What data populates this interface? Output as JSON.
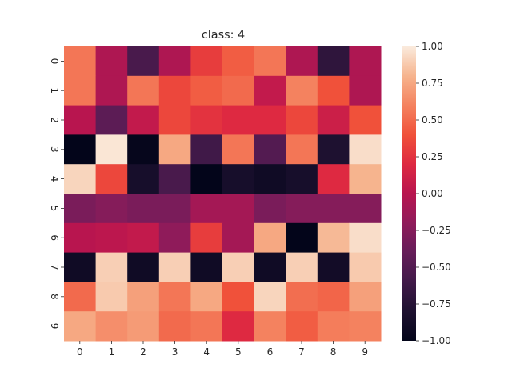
{
  "chart_data": {
    "type": "heatmap",
    "title": "class: 4",
    "xlabel": "",
    "ylabel": "",
    "x_categories": [
      "0",
      "1",
      "2",
      "3",
      "4",
      "5",
      "6",
      "7",
      "8",
      "9"
    ],
    "y_categories": [
      "0",
      "1",
      "2",
      "3",
      "4",
      "5",
      "6",
      "7",
      "8",
      "9"
    ],
    "values": [
      [
        0.55,
        -0.05,
        -0.55,
        -0.05,
        0.3,
        0.45,
        0.55,
        -0.05,
        -0.7,
        -0.05
      ],
      [
        0.55,
        -0.05,
        0.55,
        0.35,
        0.45,
        0.5,
        0.05,
        0.6,
        0.4,
        -0.05
      ],
      [
        0.0,
        -0.45,
        0.05,
        0.35,
        0.25,
        0.2,
        0.2,
        0.35,
        0.1,
        0.4
      ],
      [
        -1.0,
        0.98,
        -0.98,
        0.75,
        -0.6,
        0.55,
        -0.5,
        0.55,
        -0.8,
        0.95
      ],
      [
        0.92,
        0.35,
        -0.85,
        -0.55,
        -1.0,
        -0.85,
        -0.9,
        -0.85,
        0.2,
        0.8
      ],
      [
        -0.3,
        -0.25,
        -0.3,
        -0.3,
        -0.1,
        -0.1,
        -0.3,
        -0.25,
        -0.25,
        -0.25
      ],
      [
        0.0,
        0.02,
        0.05,
        -0.2,
        0.3,
        -0.1,
        0.75,
        -1.0,
        0.82,
        0.95
      ],
      [
        -0.9,
        0.9,
        -0.9,
        0.9,
        -0.9,
        0.9,
        -0.9,
        0.9,
        -0.88,
        0.88
      ],
      [
        0.5,
        0.88,
        0.72,
        0.55,
        0.75,
        0.4,
        0.92,
        0.52,
        0.48,
        0.72
      ],
      [
        0.75,
        0.65,
        0.7,
        0.5,
        0.55,
        0.2,
        0.6,
        0.45,
        0.58,
        0.6
      ]
    ],
    "vmin": -1.0,
    "vmax": 1.0,
    "colormap": "rocket",
    "colorbar_ticks": [
      1.0,
      0.75,
      0.5,
      0.25,
      0.0,
      -0.25,
      -0.5,
      -0.75,
      -1.0
    ],
    "colorbar_tick_labels": [
      "1.00",
      "0.75",
      "0.50",
      "0.25",
      "0.00",
      "−0.25",
      "−0.50",
      "−0.75",
      "−1.00"
    ],
    "grid": false
  }
}
